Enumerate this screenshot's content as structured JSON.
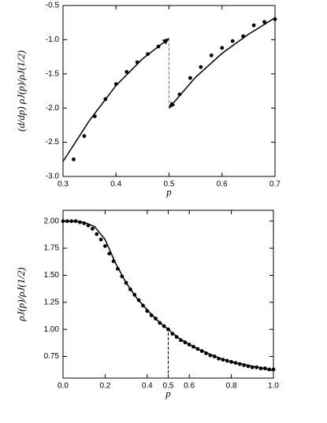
{
  "chart_data": [
    {
      "type": "scatter",
      "xlabel": "p",
      "ylabel": "(d/dp) ρJ(p)/ρJ(1/2)",
      "xlim": [
        0.3,
        0.7
      ],
      "ylim": [
        -3,
        -0.5
      ],
      "xticks": [
        0.3,
        0.4,
        0.5,
        0.6,
        0.7
      ],
      "yticks": [
        {
          "value": -3,
          "label": "-3.0"
        },
        -2.5,
        {
          "value": -2,
          "label": "-2.0"
        },
        -1.5,
        {
          "value": -1,
          "label": "-1.0"
        },
        -0.5
      ],
      "series": [
        {
          "mode": "markers",
          "color": "#000000",
          "x": [
            0.32,
            0.34,
            0.36,
            0.38,
            0.4,
            0.42,
            0.44,
            0.46,
            0.48,
            0.52,
            0.54,
            0.56,
            0.58,
            0.6,
            0.62,
            0.64,
            0.66,
            0.68,
            0.7
          ],
          "values": [
            -2.75,
            -2.41,
            -2.12,
            -1.87,
            -1.65,
            -1.47,
            -1.33,
            -1.21,
            -1.1,
            -1.8,
            -1.56,
            -1.4,
            -1.23,
            -1.12,
            -1.02,
            -0.95,
            -0.79,
            -0.74,
            -0.7
          ]
        },
        {
          "mode": "line",
          "color": "#000000",
          "arrow": "end",
          "x": [
            0.3,
            0.35,
            0.4,
            0.45,
            0.5
          ],
          "values": [
            -2.78,
            -2.18,
            -1.67,
            -1.28,
            -0.98
          ]
        },
        {
          "mode": "line",
          "color": "#000000",
          "arrow": "start",
          "x": [
            0.5,
            0.55,
            0.6,
            0.65,
            0.7
          ],
          "values": [
            -2.0,
            -1.55,
            -1.2,
            -0.92,
            -0.68
          ]
        },
        {
          "mode": "line",
          "color": "#777777",
          "dash": true,
          "x": [
            0.5,
            0.5
          ],
          "values": [
            -0.98,
            -2.0
          ]
        }
      ]
    },
    {
      "type": "scatter",
      "xlabel": "p",
      "ylabel": "ρJ(p)/ρJ(1/2)",
      "xlim": [
        0,
        1
      ],
      "ylim": [
        0.55,
        2.1
      ],
      "xticks": [
        {
          "value": 0,
          "label": "0.0"
        },
        0.2,
        0.4,
        0.5,
        0.6,
        0.8,
        {
          "value": 1,
          "label": "1.0"
        }
      ],
      "yticks": [
        0.75,
        {
          "value": 1,
          "label": "1.00"
        },
        1.25,
        {
          "value": 1.5,
          "label": "1.50"
        },
        1.75,
        {
          "value": 2,
          "label": "2.00"
        }
      ],
      "series": [
        {
          "mode": "markers",
          "color": "#000000",
          "x": [
            0,
            0.02,
            0.04,
            0.06,
            0.08,
            0.1,
            0.12,
            0.14,
            0.16,
            0.18,
            0.2,
            0.22,
            0.24,
            0.26,
            0.28,
            0.3,
            0.32,
            0.34,
            0.36,
            0.38,
            0.4,
            0.42,
            0.44,
            0.46,
            0.48,
            0.5,
            0.52,
            0.54,
            0.56,
            0.58,
            0.6,
            0.62,
            0.64,
            0.66,
            0.68,
            0.7,
            0.72,
            0.74,
            0.76,
            0.78,
            0.8,
            0.82,
            0.84,
            0.86,
            0.88,
            0.9,
            0.92,
            0.94,
            0.96,
            0.98,
            1.0
          ],
          "values": [
            2.0,
            2.0,
            2.0,
            2.0,
            1.99,
            1.98,
            1.96,
            1.93,
            1.88,
            1.83,
            1.77,
            1.7,
            1.63,
            1.56,
            1.49,
            1.43,
            1.37,
            1.32,
            1.27,
            1.22,
            1.17,
            1.13,
            1.1,
            1.06,
            1.03,
            1.0,
            0.96,
            0.93,
            0.9,
            0.88,
            0.86,
            0.84,
            0.82,
            0.8,
            0.78,
            0.76,
            0.75,
            0.73,
            0.72,
            0.71,
            0.7,
            0.69,
            0.68,
            0.67,
            0.66,
            0.65,
            0.65,
            0.64,
            0.64,
            0.63,
            0.63
          ]
        },
        {
          "mode": "line",
          "color": "#000000",
          "x": [
            0,
            0.05,
            0.1,
            0.15,
            0.2,
            0.25,
            0.3,
            0.35,
            0.4,
            0.45,
            0.5,
            0.55,
            0.6,
            0.65,
            0.7,
            0.75,
            0.8,
            0.85,
            0.9,
            0.95,
            1.0
          ],
          "values": [
            2.0,
            2.0,
            1.99,
            1.95,
            1.83,
            1.61,
            1.43,
            1.29,
            1.18,
            1.08,
            1.0,
            0.92,
            0.86,
            0.81,
            0.77,
            0.73,
            0.7,
            0.68,
            0.66,
            0.64,
            0.62
          ]
        },
        {
          "mode": "line",
          "color": "#000000",
          "dash": true,
          "x": [
            0.5,
            0.5
          ],
          "values": [
            0.55,
            1.0
          ]
        }
      ]
    }
  ]
}
